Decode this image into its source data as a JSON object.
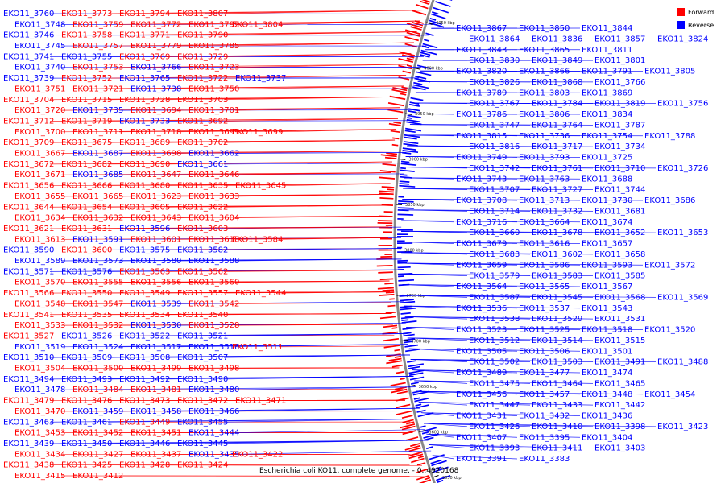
{
  "caption": "Escherichia coli KO11, complete genome. - 0..4920168",
  "legend": [
    {
      "label": "Forward",
      "color": "#ff0000"
    },
    {
      "label": "Reverse",
      "color": "#0000ff"
    }
  ],
  "colors": {
    "forward": "#ff0000",
    "reverse": "#0000ff",
    "backbone": "#888888"
  },
  "ticks": [
    "4050 kbp",
    "4000 kbp",
    "3950 kbp",
    "3900 kbp",
    "3850 kbp",
    "3800 kbp",
    "3750 kbp",
    "3700 kbp",
    "3650 kbp",
    "3600 kbp",
    "3550 kbp"
  ],
  "left_labels": [
    {
      "t": "EKO11_3760",
      "s": "r"
    },
    {
      "t": "EKO11_3773",
      "s": "f"
    },
    {
      "t": "EKO11_3794",
      "s": "f"
    },
    {
      "t": "EKO11_3807",
      "s": "f"
    },
    {
      "t": "EKO11_3748",
      "s": "r"
    },
    {
      "t": "EKO11_3759",
      "s": "f"
    },
    {
      "t": "EKO11_3772",
      "s": "f"
    },
    {
      "t": "EKO11_3792",
      "s": "f"
    },
    {
      "t": "EKO11_3804",
      "s": "f"
    },
    {
      "t": "EKO11_3746",
      "s": "r"
    },
    {
      "t": "EKO11_3758",
      "s": "f"
    },
    {
      "t": "EKO11_3771",
      "s": "f"
    },
    {
      "t": "EKO11_3790",
      "s": "f"
    },
    {
      "t": "EKO11_3745",
      "s": "r"
    },
    {
      "t": "EKO11_3757",
      "s": "f"
    },
    {
      "t": "EKO11_3779",
      "s": "f"
    },
    {
      "t": "EKO11_3785",
      "s": "f"
    },
    {
      "t": "EKO11_3741",
      "s": "r"
    },
    {
      "t": "EKO11_3755",
      "s": "r"
    },
    {
      "t": "EKO11_3769",
      "s": "f"
    },
    {
      "t": "EKO11_3729",
      "s": "f"
    },
    {
      "t": "EKO11_3740",
      "s": "r"
    },
    {
      "t": "EKO11_3753",
      "s": "f"
    },
    {
      "t": "EKO11_3766",
      "s": "r"
    },
    {
      "t": "EKO11_3723",
      "s": "f"
    },
    {
      "t": "EKO11_3739",
      "s": "r"
    },
    {
      "t": "EKO11_3752",
      "s": "f"
    },
    {
      "t": "EKO11_3765",
      "s": "r"
    },
    {
      "t": "EKO11_3722",
      "s": "f"
    },
    {
      "t": "EKO11_3737",
      "s": "r"
    },
    {
      "t": "EKO11_3751",
      "s": "f"
    },
    {
      "t": "EKO11_3721",
      "s": "f"
    },
    {
      "t": "EKO11_3738",
      "s": "r"
    },
    {
      "t": "EKO11_3750",
      "s": "f"
    },
    {
      "t": "EKO11_3704",
      "s": "f"
    },
    {
      "t": "EKO11_3715",
      "s": "f"
    },
    {
      "t": "EKO11_3728",
      "s": "f"
    },
    {
      "t": "EKO11_3703",
      "s": "f"
    },
    {
      "t": "EKO11_3720",
      "s": "f"
    },
    {
      "t": "EKO11_3735",
      "s": "r"
    },
    {
      "t": "EKO11_3694",
      "s": "f"
    },
    {
      "t": "EKO11_3701",
      "s": "f"
    },
    {
      "t": "EKO11_3712",
      "s": "f"
    },
    {
      "t": "EKO11_3719",
      "s": "f"
    },
    {
      "t": "EKO11_3733",
      "s": "r"
    },
    {
      "t": "EKO11_3692",
      "s": "f"
    },
    {
      "t": "EKO11_3700",
      "s": "f"
    },
    {
      "t": "EKO11_3711",
      "s": "f"
    },
    {
      "t": "EKO11_3718",
      "s": "f"
    },
    {
      "t": "EKO11_3691",
      "s": "f"
    },
    {
      "t": "EKO11_3699",
      "s": "f"
    },
    {
      "t": "EKO11_3709",
      "s": "f"
    },
    {
      "t": "EKO11_3675",
      "s": "f"
    },
    {
      "t": "EKO11_3689",
      "s": "f"
    },
    {
      "t": "EKO11_3702",
      "s": "f"
    },
    {
      "t": "EKO11_3667",
      "s": "f"
    },
    {
      "t": "EKO11_3687",
      "s": "r"
    },
    {
      "t": "EKO11_3698",
      "s": "f"
    },
    {
      "t": "EKO11_3662",
      "s": "r"
    },
    {
      "t": "EKO11_3672",
      "s": "f"
    },
    {
      "t": "EKO11_3682",
      "s": "f"
    },
    {
      "t": "EKO11_3690",
      "s": "f"
    },
    {
      "t": "EKO11_3661",
      "s": "r"
    },
    {
      "t": "EKO11_3671",
      "s": "f"
    },
    {
      "t": "EKO11_3685",
      "s": "r"
    },
    {
      "t": "EKO11_3647",
      "s": "f"
    },
    {
      "t": "EKO11_3646",
      "s": "f"
    },
    {
      "t": "EKO11_3656",
      "s": "f"
    },
    {
      "t": "EKO11_3666",
      "s": "f"
    },
    {
      "t": "EKO11_3680",
      "s": "f"
    },
    {
      "t": "EKO11_3635",
      "s": "f"
    },
    {
      "t": "EKO11_3645",
      "s": "f"
    },
    {
      "t": "EKO11_3655",
      "s": "f"
    },
    {
      "t": "EKO11_3665",
      "s": "f"
    },
    {
      "t": "EKO11_3623",
      "s": "f"
    },
    {
      "t": "EKO11_3633",
      "s": "f"
    },
    {
      "t": "EKO11_3644",
      "s": "f"
    },
    {
      "t": "EKO11_3654",
      "s": "f"
    },
    {
      "t": "EKO11_3605",
      "s": "f"
    },
    {
      "t": "EKO11_3622",
      "s": "f"
    },
    {
      "t": "EKO11_3634",
      "s": "f"
    },
    {
      "t": "EKO11_3632",
      "s": "f"
    },
    {
      "t": "EKO11_3643",
      "s": "f"
    },
    {
      "t": "EKO11_3604",
      "s": "f"
    },
    {
      "t": "EKO11_3621",
      "s": "f"
    },
    {
      "t": "EKO11_3631",
      "s": "f"
    },
    {
      "t": "EKO11_3596",
      "s": "r"
    },
    {
      "t": "EKO11_3603",
      "s": "f"
    },
    {
      "t": "EKO11_3613",
      "s": "f"
    },
    {
      "t": "EKO11_3591",
      "s": "r"
    },
    {
      "t": "EKO11_3601",
      "s": "f"
    },
    {
      "t": "EKO11_3610",
      "s": "f"
    },
    {
      "t": "EKO11_3584",
      "s": "f"
    },
    {
      "t": "EKO11_3590",
      "s": "r"
    },
    {
      "t": "EKO11_3600",
      "s": "f"
    },
    {
      "t": "EKO11_3575",
      "s": "r"
    },
    {
      "t": "EKO11_3582",
      "s": "r"
    },
    {
      "t": "EKO11_3589",
      "s": "r"
    },
    {
      "t": "EKO11_3573",
      "s": "r"
    },
    {
      "t": "EKO11_3580",
      "s": "r"
    },
    {
      "t": "EKO11_3588",
      "s": "r"
    },
    {
      "t": "EKO11_3571",
      "s": "r"
    },
    {
      "t": "EKO11_3576",
      "s": "r"
    },
    {
      "t": "EKO11_3563",
      "s": "f"
    },
    {
      "t": "EKO11_3562",
      "s": "f"
    },
    {
      "t": "EKO11_3570",
      "s": "f"
    },
    {
      "t": "EKO11_3555",
      "s": "f"
    },
    {
      "t": "EKO11_3556",
      "s": "f"
    },
    {
      "t": "EKO11_3560",
      "s": "f"
    },
    {
      "t": "EKO11_3566",
      "s": "f"
    },
    {
      "t": "EKO11_3550",
      "s": "f"
    },
    {
      "t": "EKO11_3549",
      "s": "f"
    },
    {
      "t": "EKO11_3557",
      "s": "f"
    },
    {
      "t": "EKO11_3544",
      "s": "f"
    },
    {
      "t": "EKO11_3548",
      "s": "f"
    },
    {
      "t": "EKO11_3547",
      "s": "f"
    },
    {
      "t": "EKO11_3539",
      "s": "r"
    },
    {
      "t": "EKO11_3542",
      "s": "f"
    },
    {
      "t": "EKO11_3541",
      "s": "f"
    },
    {
      "t": "EKO11_3535",
      "s": "f"
    },
    {
      "t": "EKO11_3534",
      "s": "f"
    },
    {
      "t": "EKO11_3540",
      "s": "f"
    },
    {
      "t": "EKO11_3533",
      "s": "f"
    },
    {
      "t": "EKO11_3532",
      "s": "f"
    },
    {
      "t": "EKO11_3530",
      "s": "r"
    },
    {
      "t": "EKO11_3528",
      "s": "f"
    },
    {
      "t": "EKO11_3527",
      "s": "f"
    },
    {
      "t": "EKO11_3526",
      "s": "r"
    },
    {
      "t": "EKO11_3522",
      "s": "r"
    },
    {
      "t": "EKO11_3521",
      "s": "r"
    },
    {
      "t": "EKO11_3519",
      "s": "r"
    },
    {
      "t": "EKO11_3524",
      "s": "r"
    },
    {
      "t": "EKO11_3517",
      "s": "r"
    },
    {
      "t": "EKO11_3516",
      "s": "r"
    },
    {
      "t": "EKO11_3511",
      "s": "f"
    },
    {
      "t": "EKO11_3510",
      "s": "r"
    },
    {
      "t": "EKO11_3509",
      "s": "r"
    },
    {
      "t": "EKO11_3508",
      "s": "r"
    },
    {
      "t": "EKO11_3507",
      "s": "r"
    },
    {
      "t": "EKO11_3504",
      "s": "f"
    },
    {
      "t": "EKO11_3500",
      "s": "f"
    },
    {
      "t": "EKO11_3499",
      "s": "f"
    },
    {
      "t": "EKO11_3498",
      "s": "f"
    },
    {
      "t": "EKO11_3494",
      "s": "r"
    },
    {
      "t": "EKO11_3493",
      "s": "r"
    },
    {
      "t": "EKO11_3492",
      "s": "r"
    },
    {
      "t": "EKO11_3490",
      "s": "r"
    },
    {
      "t": "EKO11_3478",
      "s": "r"
    },
    {
      "t": "EKO11_3484",
      "s": "f"
    },
    {
      "t": "EKO11_3481",
      "s": "f"
    },
    {
      "t": "EKO11_3480",
      "s": "r"
    },
    {
      "t": "EKO11_3479",
      "s": "f"
    },
    {
      "t": "EKO11_3476",
      "s": "f"
    },
    {
      "t": "EKO11_3473",
      "s": "f"
    },
    {
      "t": "EKO11_3472",
      "s": "f"
    },
    {
      "t": "EKO11_3471",
      "s": "f"
    },
    {
      "t": "EKO11_3470",
      "s": "f"
    },
    {
      "t": "EKO11_3459",
      "s": "r"
    },
    {
      "t": "EKO11_3458",
      "s": "r"
    },
    {
      "t": "EKO11_3466",
      "s": "r"
    },
    {
      "t": "EKO11_3463",
      "s": "r"
    },
    {
      "t": "EKO11_3461",
      "s": "r"
    },
    {
      "t": "EKO11_3449",
      "s": "f"
    },
    {
      "t": "EKO11_3455",
      "s": "r"
    },
    {
      "t": "EKO11_3453",
      "s": "f"
    },
    {
      "t": "EKO11_3452",
      "s": "f"
    },
    {
      "t": "EKO11_3451",
      "s": "f"
    },
    {
      "t": "EKO11_3444",
      "s": "r"
    },
    {
      "t": "EKO11_3439",
      "s": "r"
    },
    {
      "t": "EKO11_3450",
      "s": "r"
    },
    {
      "t": "EKO11_3446",
      "s": "r"
    },
    {
      "t": "EKO11_3445",
      "s": "r"
    },
    {
      "t": "EKO11_3434",
      "s": "f"
    },
    {
      "t": "EKO11_3427",
      "s": "f"
    },
    {
      "t": "EKO11_3437",
      "s": "f"
    },
    {
      "t": "EKO11_3435",
      "s": "r"
    },
    {
      "t": "EKO11_3422",
      "s": "f"
    },
    {
      "t": "EKO11_3438",
      "s": "f"
    },
    {
      "t": "EKO11_3425",
      "s": "f"
    },
    {
      "t": "EKO11_3428",
      "s": "f"
    },
    {
      "t": "EKO11_3424",
      "s": "f"
    },
    {
      "t": "EKO11_3415",
      "s": "f"
    },
    {
      "t": "EKO11_3412",
      "s": "f"
    }
  ],
  "right_labels": [
    {
      "t": "EKO11_3867",
      "s": "r"
    },
    {
      "t": "EKO11_3850",
      "s": "r"
    },
    {
      "t": "EKO11_3844",
      "s": "r"
    },
    {
      "t": "EKO11_3864",
      "s": "r"
    },
    {
      "t": "EKO11_3836",
      "s": "r"
    },
    {
      "t": "EKO11_3857",
      "s": "r"
    },
    {
      "t": "EKO11_3824",
      "s": "r"
    },
    {
      "t": "EKO11_3843",
      "s": "r"
    },
    {
      "t": "EKO11_3865",
      "s": "r"
    },
    {
      "t": "EKO11_3811",
      "s": "r"
    },
    {
      "t": "EKO11_3830",
      "s": "r"
    },
    {
      "t": "EKO11_3849",
      "s": "r"
    },
    {
      "t": "EKO11_3801",
      "s": "r"
    },
    {
      "t": "EKO11_3820",
      "s": "r"
    },
    {
      "t": "EKO11_3866",
      "s": "r"
    },
    {
      "t": "EKO11_3791",
      "s": "r"
    },
    {
      "t": "EKO11_3805",
      "s": "r"
    },
    {
      "t": "EKO11_3826",
      "s": "r"
    },
    {
      "t": "EKO11_3868",
      "s": "r"
    },
    {
      "t": "EKO11_3766",
      "s": "r"
    },
    {
      "t": "EKO11_3789",
      "s": "r"
    },
    {
      "t": "EKO11_3803",
      "s": "r"
    },
    {
      "t": "EKO11_3869",
      "s": "r"
    },
    {
      "t": "EKO11_3767",
      "s": "r"
    },
    {
      "t": "EKO11_3784",
      "s": "r"
    },
    {
      "t": "EKO11_3819",
      "s": "r"
    },
    {
      "t": "EKO11_3756",
      "s": "r"
    },
    {
      "t": "EKO11_3786",
      "s": "r"
    },
    {
      "t": "EKO11_3806",
      "s": "r"
    },
    {
      "t": "EKO11_3834",
      "s": "r"
    },
    {
      "t": "EKO11_3747",
      "s": "r"
    },
    {
      "t": "EKO11_3764",
      "s": "r"
    },
    {
      "t": "EKO11_3787",
      "s": "r"
    },
    {
      "t": "EKO11_3815",
      "s": "r"
    },
    {
      "t": "EKO11_3736",
      "s": "r"
    },
    {
      "t": "EKO11_3754",
      "s": "r"
    },
    {
      "t": "EKO11_3788",
      "s": "r"
    },
    {
      "t": "EKO11_3816",
      "s": "r"
    },
    {
      "t": "EKO11_3717",
      "s": "r"
    },
    {
      "t": "EKO11_3734",
      "s": "r"
    },
    {
      "t": "EKO11_3749",
      "s": "r"
    },
    {
      "t": "EKO11_3793",
      "s": "r"
    },
    {
      "t": "EKO11_3725",
      "s": "r"
    },
    {
      "t": "EKO11_3742",
      "s": "r"
    },
    {
      "t": "EKO11_3761",
      "s": "r"
    },
    {
      "t": "EKO11_3710",
      "s": "r"
    },
    {
      "t": "EKO11_3726",
      "s": "r"
    },
    {
      "t": "EKO11_3743",
      "s": "r"
    },
    {
      "t": "EKO11_3763",
      "s": "r"
    },
    {
      "t": "EKO11_3688",
      "s": "r"
    },
    {
      "t": "EKO11_3707",
      "s": "r"
    },
    {
      "t": "EKO11_3727",
      "s": "r"
    },
    {
      "t": "EKO11_3744",
      "s": "r"
    },
    {
      "t": "EKO11_3708",
      "s": "r"
    },
    {
      "t": "EKO11_3713",
      "s": "r"
    },
    {
      "t": "EKO11_3730",
      "s": "r"
    },
    {
      "t": "EKO11_3686",
      "s": "r"
    },
    {
      "t": "EKO11_3714",
      "s": "r"
    },
    {
      "t": "EKO11_3732",
      "s": "r"
    },
    {
      "t": "EKO11_3681",
      "s": "r"
    },
    {
      "t": "EKO11_3716",
      "s": "r"
    },
    {
      "t": "EKO11_3664",
      "s": "r"
    },
    {
      "t": "EKO11_3674",
      "s": "r"
    },
    {
      "t": "EKO11_3660",
      "s": "r"
    },
    {
      "t": "EKO11_3678",
      "s": "r"
    },
    {
      "t": "EKO11_3652",
      "s": "r"
    },
    {
      "t": "EKO11_3653",
      "s": "r"
    },
    {
      "t": "EKO11_3679",
      "s": "r"
    },
    {
      "t": "EKO11_3616",
      "s": "r"
    },
    {
      "t": "EKO11_3657",
      "s": "r"
    },
    {
      "t": "EKO11_3683",
      "s": "r"
    },
    {
      "t": "EKO11_3602",
      "s": "r"
    },
    {
      "t": "EKO11_3658",
      "s": "r"
    },
    {
      "t": "EKO11_3659",
      "s": "r"
    },
    {
      "t": "EKO11_3586",
      "s": "r"
    },
    {
      "t": "EKO11_3593",
      "s": "r"
    },
    {
      "t": "EKO11_3572",
      "s": "r"
    },
    {
      "t": "EKO11_3579",
      "s": "r"
    },
    {
      "t": "EKO11_3583",
      "s": "r"
    },
    {
      "t": "EKO11_3585",
      "s": "r"
    },
    {
      "t": "EKO11_3564",
      "s": "r"
    },
    {
      "t": "EKO11_3565",
      "s": "r"
    },
    {
      "t": "EKO11_3567",
      "s": "r"
    },
    {
      "t": "EKO11_3587",
      "s": "r"
    },
    {
      "t": "EKO11_3545",
      "s": "r"
    },
    {
      "t": "EKO11_3568",
      "s": "r"
    },
    {
      "t": "EKO11_3569",
      "s": "r"
    },
    {
      "t": "EKO11_3536",
      "s": "r"
    },
    {
      "t": "EKO11_3537",
      "s": "r"
    },
    {
      "t": "EKO11_3543",
      "s": "r"
    },
    {
      "t": "EKO11_3538",
      "s": "r"
    },
    {
      "t": "EKO11_3529",
      "s": "r"
    },
    {
      "t": "EKO11_3531",
      "s": "r"
    },
    {
      "t": "EKO11_3523",
      "s": "r"
    },
    {
      "t": "EKO11_3525",
      "s": "r"
    },
    {
      "t": "EKO11_3518",
      "s": "r"
    },
    {
      "t": "EKO11_3520",
      "s": "r"
    },
    {
      "t": "EKO11_3512",
      "s": "r"
    },
    {
      "t": "EKO11_3514",
      "s": "r"
    },
    {
      "t": "EKO11_3515",
      "s": "r"
    },
    {
      "t": "EKO11_3505",
      "s": "r"
    },
    {
      "t": "EKO11_3506",
      "s": "r"
    },
    {
      "t": "EKO11_3501",
      "s": "r"
    },
    {
      "t": "EKO11_3502",
      "s": "r"
    },
    {
      "t": "EKO11_3503",
      "s": "r"
    },
    {
      "t": "EKO11_3491",
      "s": "r"
    },
    {
      "t": "EKO11_3488",
      "s": "r"
    },
    {
      "t": "EKO11_3489",
      "s": "r"
    },
    {
      "t": "EKO11_3477",
      "s": "r"
    },
    {
      "t": "EKO11_3474",
      "s": "r"
    },
    {
      "t": "EKO11_3475",
      "s": "r"
    },
    {
      "t": "EKO11_3464",
      "s": "r"
    },
    {
      "t": "EKO11_3465",
      "s": "r"
    },
    {
      "t": "EKO11_3456",
      "s": "r"
    },
    {
      "t": "EKO11_3457",
      "s": "r"
    },
    {
      "t": "EKO11_3448",
      "s": "r"
    },
    {
      "t": "EKO11_3454",
      "s": "r"
    },
    {
      "t": "EKO11_3447",
      "s": "r"
    },
    {
      "t": "EKO11_3433",
      "s": "r"
    },
    {
      "t": "EKO11_3442",
      "s": "r"
    },
    {
      "t": "EKO11_3431",
      "s": "r"
    },
    {
      "t": "EKO11_3432",
      "s": "r"
    },
    {
      "t": "EKO11_3436",
      "s": "r"
    },
    {
      "t": "EKO11_3426",
      "s": "r"
    },
    {
      "t": "EKO11_3410",
      "s": "r"
    },
    {
      "t": "EKO11_3398",
      "s": "r"
    },
    {
      "t": "EKO11_3423",
      "s": "r"
    },
    {
      "t": "EKO11_3407",
      "s": "r"
    },
    {
      "t": "EKO11_3395",
      "s": "r"
    },
    {
      "t": "EKO11_3404",
      "s": "r"
    },
    {
      "t": "EKO11_3393",
      "s": "r"
    },
    {
      "t": "EKO11_3411",
      "s": "r"
    },
    {
      "t": "EKO11_3403",
      "s": "r"
    },
    {
      "t": "EKO11_3391",
      "s": "r"
    },
    {
      "t": "EKO11_3383",
      "s": "r"
    }
  ]
}
